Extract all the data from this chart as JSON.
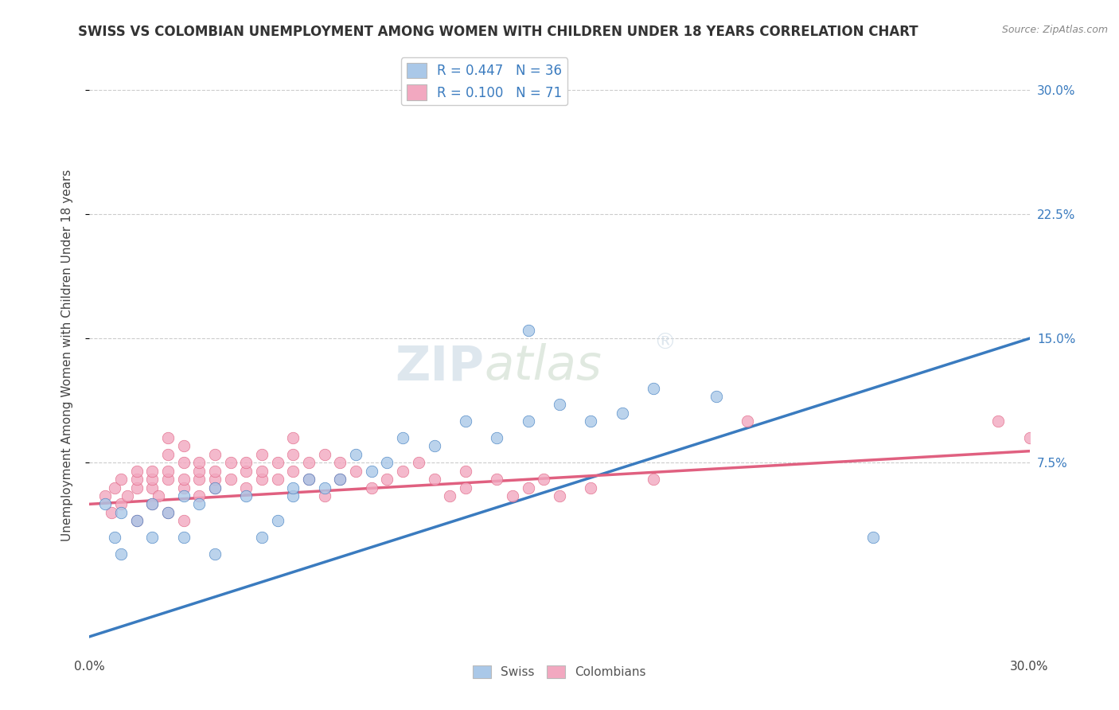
{
  "title": "SWISS VS COLOMBIAN UNEMPLOYMENT AMONG WOMEN WITH CHILDREN UNDER 18 YEARS CORRELATION CHART",
  "source": "Source: ZipAtlas.com",
  "ylabel": "Unemployment Among Women with Children Under 18 years",
  "xlim": [
    0.0,
    0.3
  ],
  "ylim": [
    -0.04,
    0.32
  ],
  "xticks": [
    0.0,
    0.3
  ],
  "xtick_labels": [
    "0.0%",
    "30.0%"
  ],
  "yticks": [
    0.075,
    0.15,
    0.225,
    0.3
  ],
  "ytick_labels": [
    "7.5%",
    "15.0%",
    "22.5%",
    "30.0%"
  ],
  "swiss_color": "#aac8e8",
  "colombian_color": "#f2a8c0",
  "swiss_line_color": "#3a7bbf",
  "colombian_line_color": "#e06080",
  "legend_swiss_label": "R = 0.447   N = 36",
  "legend_colombian_label": "R = 0.100   N = 71",
  "legend_swiss_fill": "#aac8e8",
  "legend_colombian_fill": "#f2a8c0",
  "watermark_text": "ZIP",
  "watermark_text2": "atlas",
  "swiss_R": 0.447,
  "swiss_N": 36,
  "colombian_R": 0.1,
  "colombian_N": 71,
  "swiss_line_x": [
    0.0,
    0.3
  ],
  "swiss_line_y": [
    -0.03,
    0.15
  ],
  "colombian_line_x": [
    0.0,
    0.3
  ],
  "colombian_line_y": [
    0.05,
    0.082
  ],
  "swiss_scatter": [
    [
      0.005,
      0.05
    ],
    [
      0.008,
      0.03
    ],
    [
      0.01,
      0.045
    ],
    [
      0.01,
      0.02
    ],
    [
      0.015,
      0.04
    ],
    [
      0.02,
      0.03
    ],
    [
      0.02,
      0.05
    ],
    [
      0.025,
      0.045
    ],
    [
      0.03,
      0.03
    ],
    [
      0.03,
      0.055
    ],
    [
      0.035,
      0.05
    ],
    [
      0.04,
      0.02
    ],
    [
      0.04,
      0.06
    ],
    [
      0.05,
      0.055
    ],
    [
      0.055,
      0.03
    ],
    [
      0.06,
      0.04
    ],
    [
      0.065,
      0.055
    ],
    [
      0.065,
      0.06
    ],
    [
      0.07,
      0.065
    ],
    [
      0.075,
      0.06
    ],
    [
      0.08,
      0.065
    ],
    [
      0.085,
      0.08
    ],
    [
      0.09,
      0.07
    ],
    [
      0.095,
      0.075
    ],
    [
      0.1,
      0.09
    ],
    [
      0.11,
      0.085
    ],
    [
      0.12,
      0.1
    ],
    [
      0.13,
      0.09
    ],
    [
      0.14,
      0.1
    ],
    [
      0.15,
      0.11
    ],
    [
      0.16,
      0.1
    ],
    [
      0.17,
      0.105
    ],
    [
      0.18,
      0.12
    ],
    [
      0.2,
      0.115
    ],
    [
      0.25,
      0.03
    ],
    [
      0.14,
      0.155
    ]
  ],
  "colombian_scatter": [
    [
      0.005,
      0.055
    ],
    [
      0.007,
      0.045
    ],
    [
      0.008,
      0.06
    ],
    [
      0.01,
      0.05
    ],
    [
      0.01,
      0.065
    ],
    [
      0.012,
      0.055
    ],
    [
      0.015,
      0.04
    ],
    [
      0.015,
      0.06
    ],
    [
      0.015,
      0.065
    ],
    [
      0.015,
      0.07
    ],
    [
      0.02,
      0.05
    ],
    [
      0.02,
      0.06
    ],
    [
      0.02,
      0.065
    ],
    [
      0.02,
      0.07
    ],
    [
      0.022,
      0.055
    ],
    [
      0.025,
      0.065
    ],
    [
      0.025,
      0.07
    ],
    [
      0.025,
      0.08
    ],
    [
      0.025,
      0.045
    ],
    [
      0.025,
      0.09
    ],
    [
      0.03,
      0.06
    ],
    [
      0.03,
      0.065
    ],
    [
      0.03,
      0.075
    ],
    [
      0.03,
      0.085
    ],
    [
      0.03,
      0.04
    ],
    [
      0.035,
      0.065
    ],
    [
      0.035,
      0.07
    ],
    [
      0.035,
      0.075
    ],
    [
      0.035,
      0.055
    ],
    [
      0.04,
      0.06
    ],
    [
      0.04,
      0.065
    ],
    [
      0.04,
      0.07
    ],
    [
      0.04,
      0.08
    ],
    [
      0.045,
      0.065
    ],
    [
      0.045,
      0.075
    ],
    [
      0.05,
      0.06
    ],
    [
      0.05,
      0.07
    ],
    [
      0.05,
      0.075
    ],
    [
      0.055,
      0.065
    ],
    [
      0.055,
      0.07
    ],
    [
      0.055,
      0.08
    ],
    [
      0.06,
      0.065
    ],
    [
      0.06,
      0.075
    ],
    [
      0.065,
      0.07
    ],
    [
      0.065,
      0.08
    ],
    [
      0.065,
      0.09
    ],
    [
      0.07,
      0.065
    ],
    [
      0.07,
      0.075
    ],
    [
      0.075,
      0.055
    ],
    [
      0.075,
      0.08
    ],
    [
      0.08,
      0.065
    ],
    [
      0.08,
      0.075
    ],
    [
      0.085,
      0.07
    ],
    [
      0.09,
      0.06
    ],
    [
      0.095,
      0.065
    ],
    [
      0.1,
      0.07
    ],
    [
      0.105,
      0.075
    ],
    [
      0.11,
      0.065
    ],
    [
      0.115,
      0.055
    ],
    [
      0.12,
      0.06
    ],
    [
      0.12,
      0.07
    ],
    [
      0.13,
      0.065
    ],
    [
      0.135,
      0.055
    ],
    [
      0.14,
      0.06
    ],
    [
      0.145,
      0.065
    ],
    [
      0.15,
      0.055
    ],
    [
      0.16,
      0.06
    ],
    [
      0.18,
      0.065
    ],
    [
      0.21,
      0.1
    ],
    [
      0.29,
      0.1
    ],
    [
      0.3,
      0.09
    ]
  ],
  "title_fontsize": 12,
  "axis_label_fontsize": 11,
  "tick_fontsize": 11,
  "background_color": "#ffffff",
  "grid_color": "#cccccc",
  "scatter_size": 110
}
